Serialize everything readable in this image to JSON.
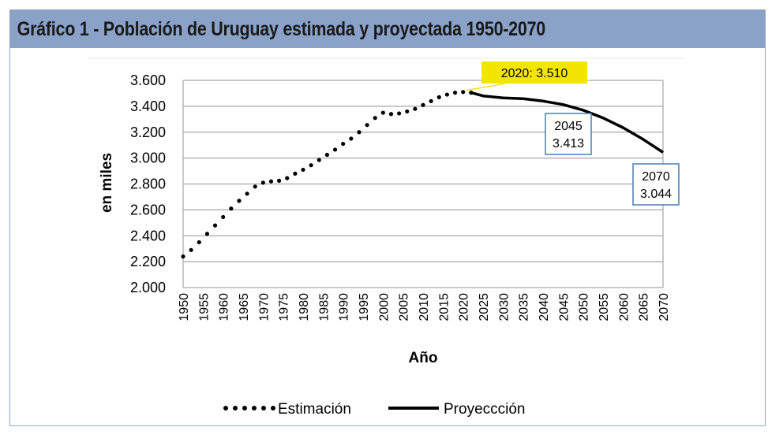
{
  "title": "Gráfico 1 - Población de Uruguay estimada y proyectada 1950-2070",
  "chart_data": {
    "type": "line",
    "ylabel": "en miles",
    "xlabel": "Año",
    "ylim": [
      2000,
      3600
    ],
    "yticks": [
      "2.000",
      "2.200",
      "2.400",
      "2.600",
      "2.800",
      "3.000",
      "3.200",
      "3.400",
      "3.600"
    ],
    "ytick_values": [
      2000,
      2200,
      2400,
      2600,
      2800,
      3000,
      3200,
      3400,
      3600
    ],
    "xlim": [
      1950,
      2070
    ],
    "xticks": [
      "1950",
      "1955",
      "1960",
      "1965",
      "1970",
      "1975",
      "1980",
      "1985",
      "1990",
      "1995",
      "2000",
      "2005",
      "2010",
      "2015",
      "2020",
      "2025",
      "2030",
      "2035",
      "2040",
      "2045",
      "2050",
      "2055",
      "2060",
      "2065",
      "2070"
    ],
    "grid": "horizontal",
    "legend_position": "bottom",
    "series": [
      {
        "name": "Estimación",
        "style": "dotted",
        "color": "#000000",
        "x": [
          1950,
          1952,
          1954,
          1956,
          1958,
          1960,
          1962,
          1964,
          1966,
          1968,
          1970,
          1972,
          1974,
          1976,
          1978,
          1980,
          1982,
          1984,
          1986,
          1988,
          1990,
          1992,
          1994,
          1996,
          1998,
          2000,
          2002,
          2004,
          2006,
          2008,
          2010,
          2012,
          2014,
          2016,
          2018,
          2020,
          2022
        ],
        "y": [
          2240,
          2290,
          2350,
          2415,
          2480,
          2545,
          2610,
          2670,
          2725,
          2780,
          2810,
          2820,
          2825,
          2845,
          2880,
          2910,
          2945,
          2985,
          3025,
          3065,
          3110,
          3150,
          3200,
          3255,
          3310,
          3350,
          3340,
          3345,
          3360,
          3380,
          3410,
          3440,
          3470,
          3490,
          3505,
          3510,
          3505
        ]
      },
      {
        "name": "Proyeccción",
        "style": "solid",
        "color": "#000000",
        "x": [
          2022,
          2025,
          2030,
          2035,
          2040,
          2045,
          2050,
          2055,
          2060,
          2065,
          2070
        ],
        "y": [
          3505,
          3480,
          3465,
          3458,
          3440,
          3413,
          3370,
          3310,
          3235,
          3145,
          3044
        ]
      }
    ],
    "annotations": [
      {
        "lines": [
          "2020: 3.510"
        ],
        "x": 2020,
        "y": 3510,
        "style": "highlight"
      },
      {
        "lines": [
          "2045",
          "3.413"
        ],
        "x": 2045,
        "y": 3413,
        "style": "box"
      },
      {
        "lines": [
          "2070",
          "3.044"
        ],
        "x": 2070,
        "y": 3044,
        "style": "box"
      }
    ],
    "colors": {
      "highlight_fill": "#f2e600",
      "box_border": "#4a7bb5",
      "grid": "#a6a6a6",
      "title_bar": "#8aa2c8"
    }
  }
}
